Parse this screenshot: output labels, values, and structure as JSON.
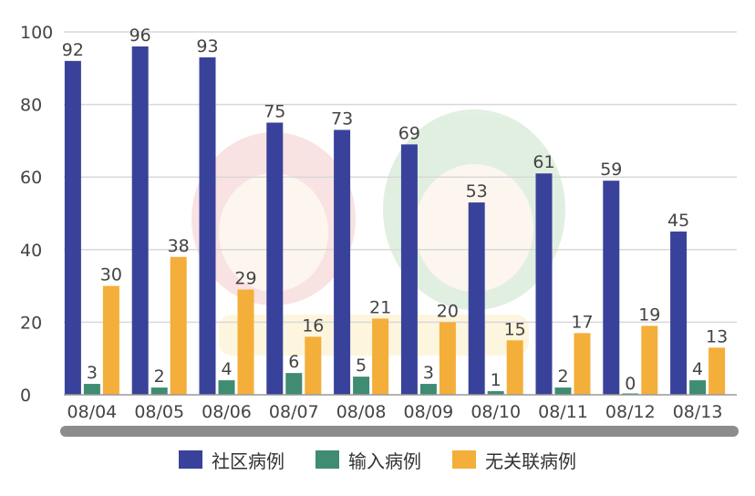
{
  "chart_data": {
    "type": "bar",
    "title": "",
    "xlabel": "",
    "ylabel": "",
    "ylim": [
      0,
      100
    ],
    "yticks": [
      "0",
      "20",
      "40",
      "60",
      "80",
      "100"
    ],
    "categories": [
      "08/04",
      "08/05",
      "08/06",
      "08/07",
      "08/08",
      "08/09",
      "08/10",
      "08/11",
      "08/12",
      "08/13"
    ],
    "series": [
      {
        "name": "社区病例",
        "color": "#39429a",
        "values": [
          92,
          96,
          93,
          75,
          73,
          69,
          53,
          61,
          59,
          45
        ]
      },
      {
        "name": "输入病例",
        "color": "#3f8c73",
        "values": [
          3,
          2,
          4,
          6,
          5,
          3,
          1,
          2,
          0,
          4
        ]
      },
      {
        "name": "无关联病例",
        "color": "#f4ae3a",
        "values": [
          30,
          38,
          29,
          16,
          21,
          20,
          15,
          17,
          19,
          13
        ]
      }
    ],
    "grid": true,
    "legend_position": "bottom-center"
  }
}
